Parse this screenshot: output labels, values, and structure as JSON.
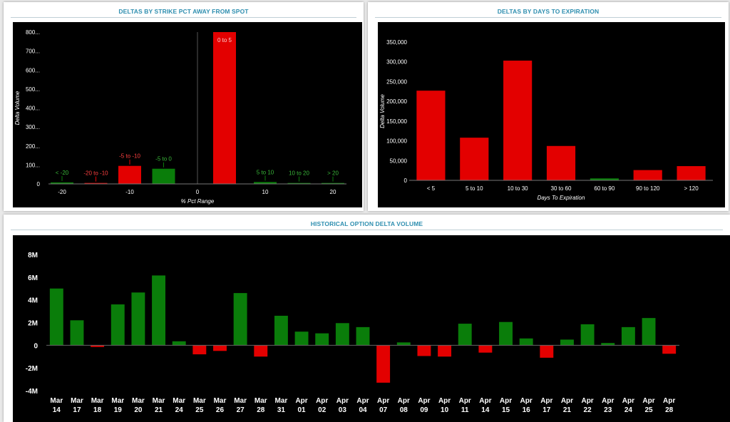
{
  "panels": {
    "strike": {
      "title": "DELTAS BY STRIKE PCT AWAY FROM SPOT"
    },
    "expiry": {
      "title": "DELTAS BY DAYS TO EXPIRATION"
    },
    "history": {
      "title": "HISTORICAL OPTION DELTA VOLUME"
    }
  },
  "colors": {
    "positive": "#0a7d0a",
    "negative": "#e30000",
    "background": "#000000",
    "title": "#2f8fb0"
  },
  "chart_data": [
    {
      "id": "strike",
      "type": "bar",
      "title": "DELTAS BY STRIKE PCT AWAY FROM SPOT",
      "xlabel": "% Pct Range",
      "ylabel": "Delta Volume",
      "xlim": [
        -22,
        22
      ],
      "ylim": [
        0,
        800
      ],
      "xticks": [
        -20,
        -10,
        0,
        10,
        20
      ],
      "xtick_labels": [
        "-20",
        "-10",
        "0",
        "10",
        "20"
      ],
      "yticks": [
        0,
        100,
        200,
        300,
        400,
        500,
        600,
        700,
        800
      ],
      "ytick_labels": [
        "0",
        "100...",
        "200...",
        "300...",
        "400...",
        "500...",
        "600...",
        "700...",
        "800..."
      ],
      "bars": [
        {
          "label": "< -20",
          "center": -20,
          "value": 8,
          "color": "green"
        },
        {
          "label": "-20 to -10",
          "center": -15,
          "value": 5,
          "color": "red"
        },
        {
          "label": "-5 to -10",
          "center": -10,
          "value": 95,
          "color": "red"
        },
        {
          "label": "-5 to 0",
          "center": -5,
          "value": 80,
          "color": "green"
        },
        {
          "label": "0 to 5",
          "center": 4,
          "value": 800,
          "color": "red"
        },
        {
          "label": "5 to 10",
          "center": 10,
          "value": 10,
          "color": "green"
        },
        {
          "label": "10 to 20",
          "center": 15,
          "value": 5,
          "color": "green"
        },
        {
          "label": "> 20",
          "center": 20,
          "value": 5,
          "color": "green"
        }
      ]
    },
    {
      "id": "expiry",
      "type": "bar",
      "title": "DELTAS BY DAYS TO EXPIRATION",
      "xlabel": "Days To Expiration",
      "ylabel": "Delta Volume",
      "ylim": [
        0,
        350000
      ],
      "yticks": [
        0,
        50000,
        100000,
        150000,
        200000,
        250000,
        300000,
        350000
      ],
      "ytick_labels": [
        "0",
        "50,000",
        "100,000",
        "150,000",
        "200,000",
        "250,000",
        "300,000",
        "350,000"
      ],
      "categories": [
        "< 5",
        "5 to 10",
        "10 to 30",
        "30 to 60",
        "60 to 90",
        "90 to 120",
        "> 120"
      ],
      "values": [
        227000,
        108000,
        303000,
        87000,
        5000,
        26000,
        36000
      ],
      "bar_colors": [
        "red",
        "red",
        "red",
        "red",
        "green",
        "red",
        "red"
      ]
    },
    {
      "id": "history",
      "type": "bar",
      "title": "HISTORICAL OPTION DELTA VOLUME",
      "xlabel": "",
      "ylabel": "",
      "ylim": [
        -4000000,
        8000000
      ],
      "yticks": [
        -4000000,
        -2000000,
        0,
        2000000,
        4000000,
        6000000,
        8000000
      ],
      "ytick_labels": [
        "-4M",
        "-2M",
        "0",
        "2M",
        "4M",
        "6M",
        "8M"
      ],
      "categories": [
        [
          "Mar",
          "14"
        ],
        [
          "Mar",
          "17"
        ],
        [
          "Mar",
          "18"
        ],
        [
          "Mar",
          "19"
        ],
        [
          "Mar",
          "20"
        ],
        [
          "Mar",
          "21"
        ],
        [
          "Mar",
          "24"
        ],
        [
          "Mar",
          "25"
        ],
        [
          "Mar",
          "26"
        ],
        [
          "Mar",
          "27"
        ],
        [
          "Mar",
          "28"
        ],
        [
          "Mar",
          "31"
        ],
        [
          "Apr",
          "01"
        ],
        [
          "Apr",
          "02"
        ],
        [
          "Apr",
          "03"
        ],
        [
          "Apr",
          "04"
        ],
        [
          "Apr",
          "07"
        ],
        [
          "Apr",
          "08"
        ],
        [
          "Apr",
          "09"
        ],
        [
          "Apr",
          "10"
        ],
        [
          "Apr",
          "11"
        ],
        [
          "Apr",
          "14"
        ],
        [
          "Apr",
          "15"
        ],
        [
          "Apr",
          "16"
        ],
        [
          "Apr",
          "17"
        ],
        [
          "Apr",
          "21"
        ],
        [
          "Apr",
          "22"
        ],
        [
          "Apr",
          "23"
        ],
        [
          "Apr",
          "24"
        ],
        [
          "Apr",
          "25"
        ],
        [
          "Apr",
          "28"
        ]
      ],
      "values": [
        5000000,
        2200000,
        -150000,
        3600000,
        4650000,
        6150000,
        350000,
        -800000,
        -500000,
        4600000,
        -1000000,
        2600000,
        1200000,
        1050000,
        1950000,
        1600000,
        -3300000,
        250000,
        -950000,
        -1000000,
        1900000,
        -650000,
        2050000,
        600000,
        -1100000,
        500000,
        1850000,
        200000,
        1600000,
        2400000,
        -750000
      ]
    }
  ]
}
